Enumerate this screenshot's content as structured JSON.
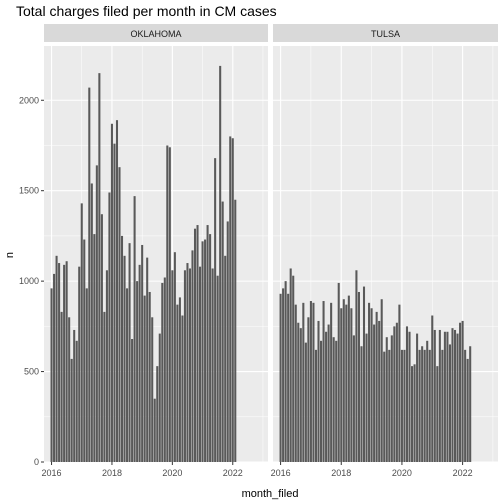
{
  "chart_data": {
    "type": "bar",
    "title": "Total charges filed per month in CM cases",
    "xlabel": "month_filed",
    "ylabel": "n",
    "ylim": [
      0,
      2300
    ],
    "yticks": [
      0,
      500,
      1000,
      1500,
      2000
    ],
    "xlim": [
      "2015-10",
      "2023-03"
    ],
    "xticks": [
      "2016",
      "2018",
      "2020",
      "2022"
    ],
    "grid": true,
    "colors": {
      "bar": "#595959",
      "panel": "#ebebeb",
      "strip": "#d9d9d9",
      "grid": "#ffffff"
    },
    "facets": [
      {
        "name": "OKLAHOMA",
        "start_month": "2016-01",
        "values": [
          960,
          1040,
          1140,
          1100,
          830,
          1090,
          1110,
          800,
          570,
          730,
          670,
          1080,
          1430,
          1230,
          960,
          2070,
          1540,
          1260,
          1640,
          2150,
          1370,
          830,
          1060,
          1490,
          1870,
          1760,
          1890,
          1630,
          1250,
          1140,
          960,
          1210,
          680,
          1470,
          1000,
          1090,
          1200,
          920,
          1130,
          940,
          800,
          350,
          530,
          710,
          990,
          1020,
          1750,
          1740,
          1060,
          1160,
          870,
          910,
          810,
          1060,
          1100,
          1070,
          1170,
          1290,
          1310,
          1080,
          1220,
          1230,
          1310,
          1260,
          1070,
          1680,
          1030,
          2190,
          1440,
          1140,
          1330,
          1800,
          1790,
          1450
        ]
      },
      {
        "name": "TULSA",
        "start_month": "2016-01",
        "values": [
          930,
          960,
          1000,
          930,
          1070,
          1030,
          870,
          770,
          740,
          880,
          660,
          800,
          890,
          880,
          620,
          780,
          670,
          890,
          720,
          760,
          880,
          690,
          670,
          990,
          850,
          900,
          870,
          920,
          850,
          700,
          1060,
          940,
          640,
          970,
          710,
          880,
          850,
          760,
          830,
          780,
          900,
          610,
          690,
          620,
          700,
          750,
          770,
          870,
          620,
          620,
          750,
          720,
          530,
          540,
          710,
          620,
          640,
          620,
          670,
          620,
          810,
          730,
          530,
          730,
          620,
          720,
          720,
          650,
          740,
          730,
          710,
          770,
          780,
          620,
          570,
          640
        ]
      }
    ]
  }
}
